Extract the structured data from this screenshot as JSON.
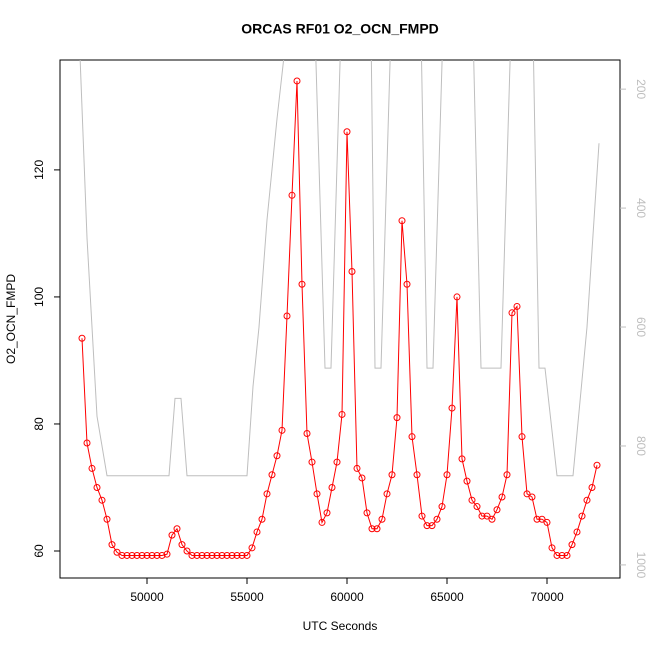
{
  "chart_data": {
    "type": "line",
    "title": "ORCAS RF01 O2_OCN_FMPD",
    "x_label": "UTC Seconds",
    "y_label": "O2_OCN_FMPD",
    "xlim": [
      45650,
      73650
    ],
    "xticks": [
      50000,
      55000,
      60000,
      65000,
      70000
    ],
    "ylim": [
      55.75,
      137.3
    ],
    "yticks": [
      60,
      80,
      100,
      120
    ],
    "y2lim": [
      1022,
      151
    ],
    "y2ticks": [
      200,
      400,
      600,
      800,
      1000
    ],
    "series": [
      {
        "color": "#ff0000",
        "markers": true,
        "x": [
          46750,
          47000,
          47250,
          47500,
          47750,
          48000,
          48250,
          48500,
          48750,
          49000,
          49250,
          49500,
          49750,
          50000,
          50250,
          50500,
          50750,
          51000,
          51250,
          51500,
          51750,
          52000,
          52250,
          52500,
          52750,
          53000,
          53250,
          53500,
          53750,
          54000,
          54250,
          54500,
          54750,
          55000,
          55250,
          55500,
          55750,
          56000,
          56250,
          56500,
          56750,
          57000,
          57250,
          57500,
          57750,
          58000,
          58250,
          58500,
          58750,
          59000,
          59250,
          59500,
          59750,
          60000,
          60250,
          60500,
          60750,
          61000,
          61250,
          61500,
          61750,
          62000,
          62250,
          62500,
          62750,
          63000,
          63250,
          63500,
          63750,
          64000,
          64250,
          64500,
          64750,
          65000,
          65250,
          65500,
          65750,
          66000,
          66250,
          66500,
          66750,
          67000,
          67250,
          67500,
          67750,
          68000,
          68250,
          68500,
          68750,
          69000,
          69250,
          69500,
          69750,
          70000,
          70250,
          70500,
          70750,
          71000,
          71250,
          71500,
          71750,
          72000,
          72250,
          72500
        ],
        "values": [
          93.5,
          77,
          73,
          70,
          68,
          65,
          61,
          59.8,
          59.3,
          59.3,
          59.3,
          59.3,
          59.3,
          59.3,
          59.3,
          59.3,
          59.3,
          59.5,
          62.5,
          63.5,
          61,
          60,
          59.3,
          59.3,
          59.3,
          59.3,
          59.3,
          59.3,
          59.3,
          59.3,
          59.3,
          59.3,
          59.3,
          59.3,
          60.5,
          63,
          65,
          69,
          72,
          75,
          79,
          97,
          116,
          134,
          102,
          78.5,
          74,
          69,
          64.5,
          66,
          70,
          74,
          81.5,
          126,
          104,
          73,
          71.5,
          66,
          63.5,
          63.5,
          65,
          69,
          72,
          81,
          112,
          102,
          78,
          72,
          65.5,
          64,
          64,
          65,
          67,
          72,
          82.5,
          100,
          74.5,
          71,
          68,
          67,
          65.5,
          65.5,
          65,
          66.5,
          68.5,
          72,
          97.5,
          98.5,
          78,
          69,
          68.5,
          65,
          65,
          64.5,
          60.5,
          59.3,
          59.3,
          59.3,
          61,
          63,
          65.5,
          68,
          70,
          73.5
        ]
      },
      {
        "color": "#bebebe",
        "axis": "y2",
        "markers": false,
        "x": [
          46600,
          47000,
          47500,
          48000,
          51100,
          51400,
          51700,
          52000,
          55000,
          55300,
          55600,
          56000,
          56500,
          57000,
          58400,
          58900,
          59200,
          59700,
          61200,
          61400,
          61700,
          62200,
          63700,
          64000,
          64300,
          64800,
          66300,
          66700,
          67700,
          68200,
          69300,
          69600,
          69900,
          70500,
          71300,
          72000,
          72600
        ],
        "values": [
          100,
          450,
          750,
          850,
          850,
          720,
          720,
          850,
          850,
          700,
          600,
          420,
          250,
          100,
          100,
          669,
          669,
          100,
          100,
          669,
          669,
          100,
          100,
          669,
          669,
          100,
          100,
          669,
          669,
          100,
          100,
          669,
          669,
          850,
          850,
          600,
          291
        ]
      }
    ]
  }
}
